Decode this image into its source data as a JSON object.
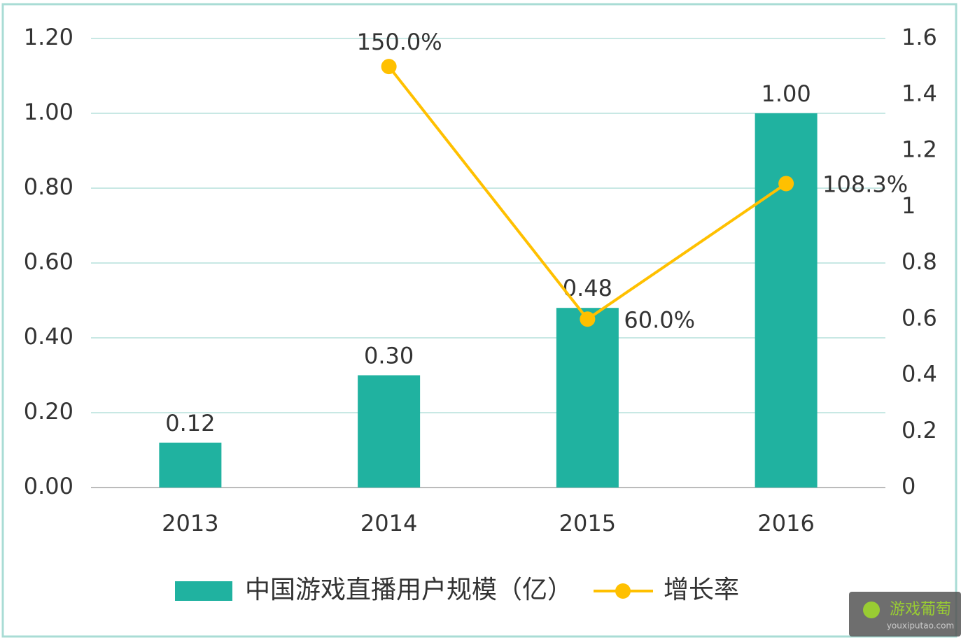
{
  "chart_data": {
    "type": "combo",
    "categories": [
      "2013",
      "2014",
      "2015",
      "2016"
    ],
    "series": [
      {
        "name": "中国游戏直播用户规模（亿）",
        "type": "bar",
        "color": "#20b2a0",
        "values": [
          0.12,
          0.3,
          0.48,
          1.0
        ],
        "value_labels": [
          "0.12",
          "0.30",
          "0.48",
          "1.00"
        ]
      },
      {
        "name": "增长率",
        "type": "line",
        "axis": "y2",
        "color": "#ffc000",
        "values": [
          null,
          1.5,
          0.6,
          1.083
        ],
        "value_labels": [
          null,
          "150.0%",
          "60.0%",
          "108.3%"
        ]
      }
    ],
    "ylim": [
      0,
      1.2
    ],
    "yticks": [
      {
        "value": 0,
        "label": "0.00"
      },
      {
        "value": 0.2,
        "label": "0.20"
      },
      {
        "value": 0.4,
        "label": "0.40"
      },
      {
        "value": 0.6,
        "label": "0.60"
      },
      {
        "value": 0.8,
        "label": "0.80"
      },
      {
        "value": 1,
        "label": "1.00"
      },
      {
        "value": 1.2,
        "label": "1.20"
      }
    ],
    "y2lim": [
      0,
      1.6
    ],
    "y2ticks": [
      0,
      0.2,
      0.4,
      0.6,
      0.8,
      1,
      1.2,
      1.4,
      1.6
    ],
    "grid": true,
    "legend": "bottom"
  },
  "watermark": {
    "title": "游戏葡萄",
    "subtitle": "youxiputao.com"
  }
}
